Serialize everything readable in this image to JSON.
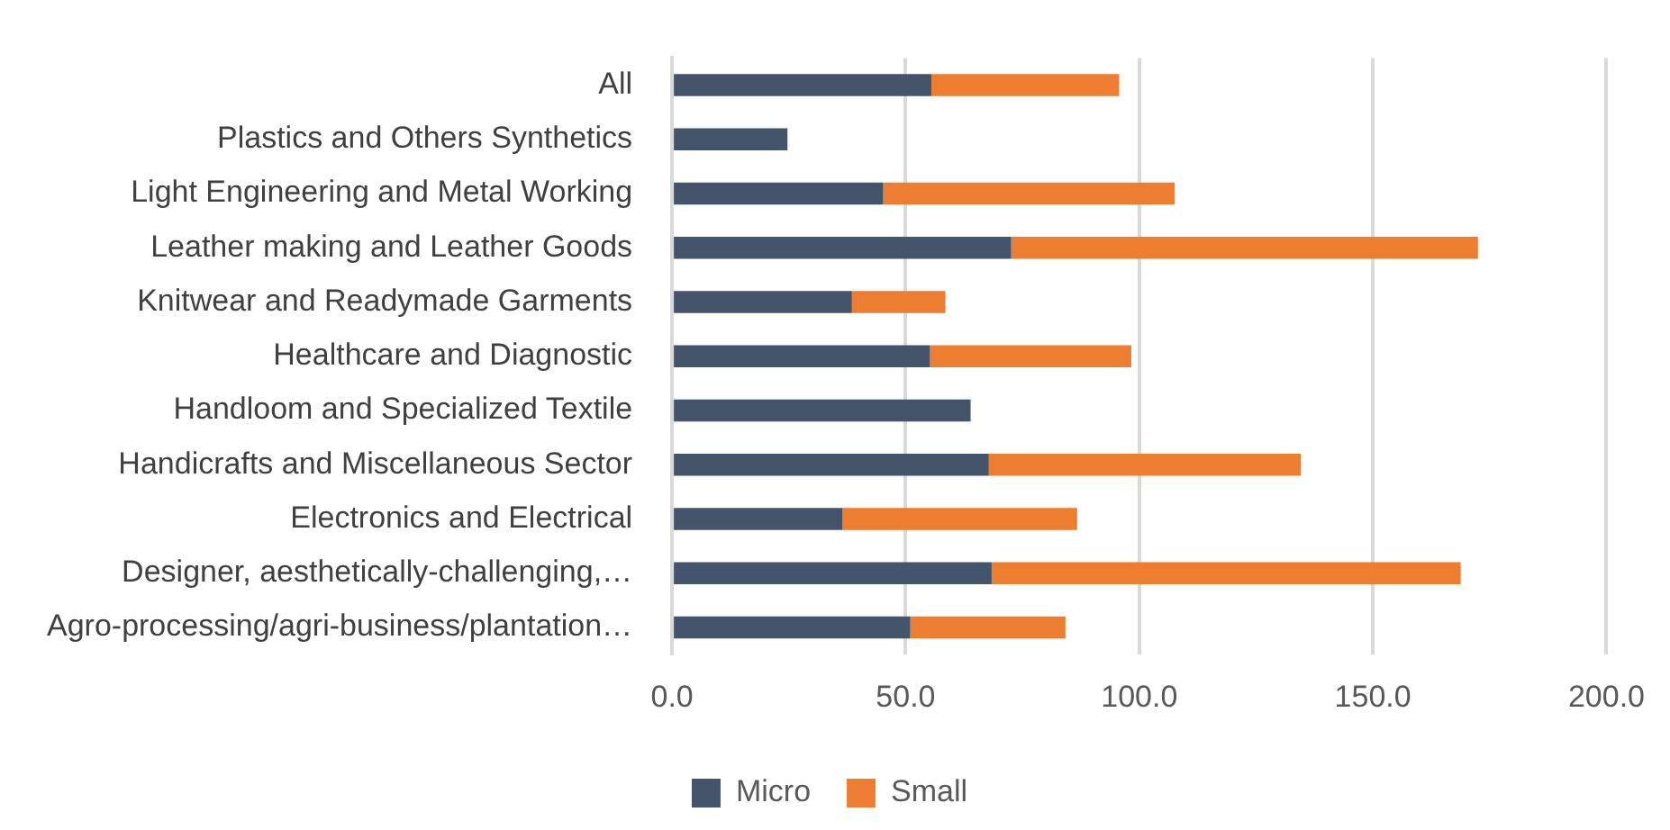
{
  "chart_data": {
    "type": "bar",
    "orientation": "horizontal",
    "stacked": true,
    "categories": [
      "All",
      "Plastics and Others Synthetics",
      "Light Engineering and Metal Working",
      "Leather making and Leather Goods",
      "Knitwear and Readymade Garments",
      "Healthcare and Diagnostic",
      "Handloom and Specialized Textile",
      "Handicrafts and Miscellaneous Sector",
      "Electronics and Electrical",
      "Designer, aesthetically-challenging,…",
      "Agro-processing/agri-business/plantation…"
    ],
    "series": [
      {
        "name": "Micro",
        "color": "#44546a",
        "values": [
          55.5,
          24.7,
          45.2,
          72.6,
          38.5,
          55.2,
          63.9,
          67.8,
          36.5,
          68.4,
          51.0
        ]
      },
      {
        "name": "Small",
        "color": "#ed7d31",
        "values": [
          40.2,
          null,
          62.4,
          99.9,
          20.0,
          43.1,
          null,
          66.8,
          50.2,
          100.4,
          33.2
        ]
      }
    ],
    "xlim": [
      0,
      200
    ],
    "xticks": [
      {
        "value": 0,
        "label": "0.0"
      },
      {
        "value": 50,
        "label": "50.0"
      },
      {
        "value": 100,
        "label": "100.0"
      },
      {
        "value": 150,
        "label": "150.0"
      },
      {
        "value": 200,
        "label": "200.0"
      }
    ],
    "grid": "x",
    "legend": "bottom"
  }
}
